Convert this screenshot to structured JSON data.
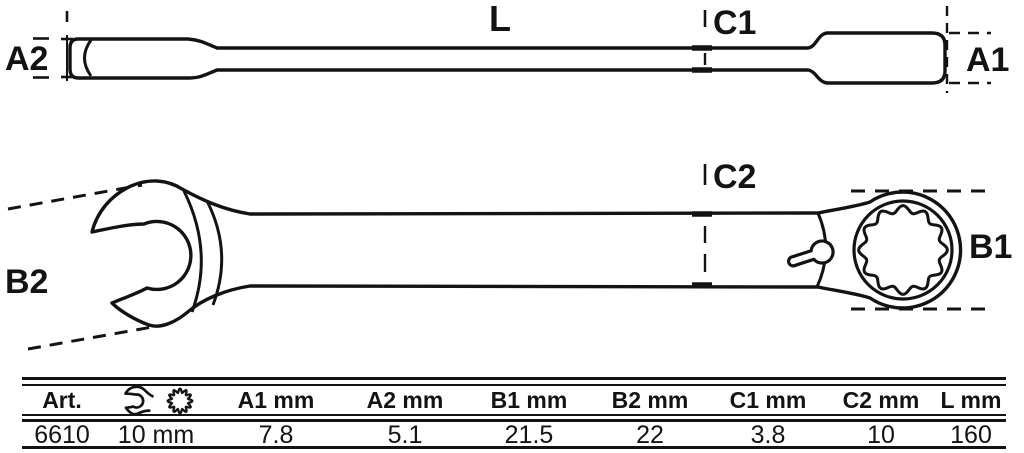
{
  "diagram": {
    "labels": {
      "l": "L",
      "c1": "C1",
      "a1": "A1",
      "a2": "A2",
      "c2": "C2",
      "b1": "B1",
      "b2": "B2"
    }
  },
  "table": {
    "headers": {
      "art": "Art.",
      "a1": "A1 mm",
      "a2": "A2 mm",
      "b1": "B1 mm",
      "b2": "B2 mm",
      "c1": "C1 mm",
      "c2": "C2 mm",
      "l": "L mm"
    },
    "row": {
      "art": "6610",
      "size": "10 mm",
      "a1": "7.8",
      "a2": "5.1",
      "b1": "21.5",
      "b2": "22",
      "c1": "3.8",
      "c2": "10",
      "l": "160"
    }
  },
  "icons": {
    "open_end": "open-end-wrench-icon",
    "ring": "ring-12pt-icon"
  },
  "colors": {
    "line": "#131313",
    "background": "#ffffff"
  }
}
